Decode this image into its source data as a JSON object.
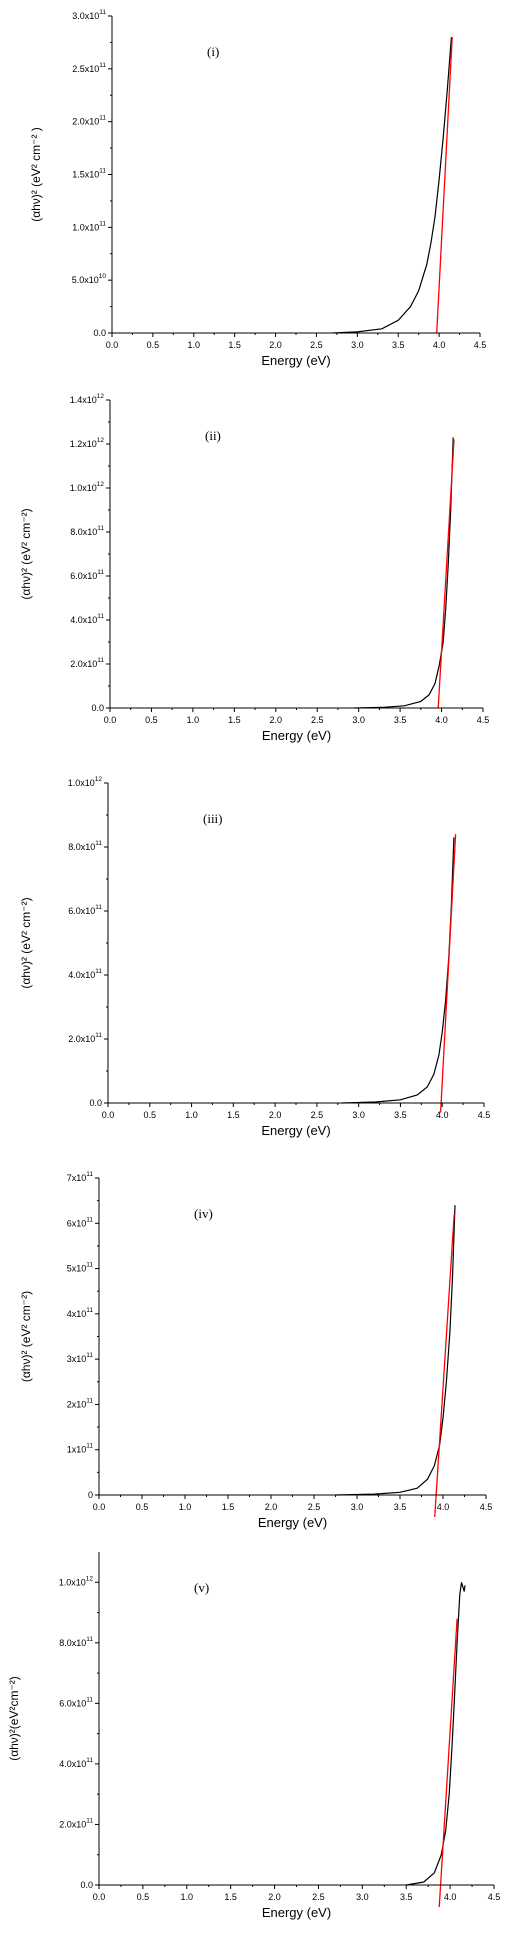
{
  "chart_data": [
    {
      "type": "line",
      "panel_label": "(i)",
      "xlabel": "Energy (eV)",
      "ylabel": "(αhν)² (eV² cm⁻² )",
      "xlim": [
        0,
        4.5
      ],
      "ylim": [
        0,
        300000000000.0
      ],
      "xticks": [
        "0.0",
        "0.5",
        "1.0",
        "1.5",
        "2.0",
        "2.5",
        "3.0",
        "3.5",
        "4.0",
        "4.5"
      ],
      "yticks": [
        {
          "v": 0,
          "m": "0.0",
          "e": ""
        },
        {
          "v": 50000000000.0,
          "m": "5.0x10",
          "e": "10"
        },
        {
          "v": 100000000000.0,
          "m": "1.0x10",
          "e": "11"
        },
        {
          "v": 150000000000.0,
          "m": "1.5x10",
          "e": "11"
        },
        {
          "v": 200000000000.0,
          "m": "2.0x10",
          "e": "11"
        },
        {
          "v": 250000000000.0,
          "m": "2.5x10",
          "e": "11"
        },
        {
          "v": 300000000000.0,
          "m": "3.0x10",
          "e": "11"
        }
      ],
      "series": [
        {
          "color": "#000000",
          "points": [
            [
              2.7,
              0
            ],
            [
              3.0,
              1000000000.0
            ],
            [
              3.3,
              4000000000.0
            ],
            [
              3.5,
              12000000000.0
            ],
            [
              3.65,
              25000000000.0
            ],
            [
              3.75,
              40000000000.0
            ],
            [
              3.85,
              65000000000.0
            ],
            [
              3.9,
              85000000000.0
            ],
            [
              3.95,
              110000000000.0
            ],
            [
              4.0,
              145000000000.0
            ],
            [
              4.05,
              185000000000.0
            ],
            [
              4.1,
              230000000000.0
            ],
            [
              4.15,
              280000000000.0
            ]
          ]
        },
        {
          "color": "#ff0000",
          "points": [
            [
              3.97,
              0
            ],
            [
              4.16,
              280000000000.0
            ]
          ]
        }
      ]
    },
    {
      "type": "line",
      "panel_label": "(ii)",
      "xlabel": "Energy (eV)",
      "ylabel": "(αhν)² (eV² cm⁻²)",
      "xlim": [
        0,
        4.5
      ],
      "ylim": [
        0,
        1400000000000.0
      ],
      "xticks": [
        "0.0",
        "0.5",
        "1.0",
        "1.5",
        "2.0",
        "2.5",
        "3.0",
        "3.5",
        "4.0",
        "4.5"
      ],
      "yticks": [
        {
          "v": 0,
          "m": "0.0",
          "e": ""
        },
        {
          "v": 200000000000.0,
          "m": "2.0x10",
          "e": "11"
        },
        {
          "v": 400000000000.0,
          "m": "4.0x10",
          "e": "11"
        },
        {
          "v": 600000000000.0,
          "m": "6.0x10",
          "e": "11"
        },
        {
          "v": 800000000000.0,
          "m": "8.0x10",
          "e": "11"
        },
        {
          "v": 1000000000000.0,
          "m": "1.0x10",
          "e": "12"
        },
        {
          "v": 1200000000000.0,
          "m": "1.2x10",
          "e": "12"
        },
        {
          "v": 1400000000000.0,
          "m": "1.4x10",
          "e": "12"
        }
      ],
      "series": [
        {
          "color": "#000000",
          "points": [
            [
              2.95,
              0
            ],
            [
              3.3,
              3000000000.0
            ],
            [
              3.55,
              10000000000.0
            ],
            [
              3.75,
              30000000000.0
            ],
            [
              3.85,
              60000000000.0
            ],
            [
              3.92,
              110000000000.0
            ],
            [
              3.97,
              190000000000.0
            ],
            [
              4.02,
              300000000000.0
            ],
            [
              4.05,
              450000000000.0
            ],
            [
              4.08,
              650000000000.0
            ],
            [
              4.11,
              900000000000.0
            ],
            [
              4.14,
              1230000000000.0
            ]
          ]
        },
        {
          "color": "#ff0000",
          "points": [
            [
              3.96,
              0
            ],
            [
              4.15,
              1220000000000.0
            ]
          ]
        }
      ]
    },
    {
      "type": "line",
      "panel_label": "(iii)",
      "xlabel": "Energy (eV)",
      "ylabel": "(αhν)² (eV² cm⁻²)",
      "xlim": [
        0,
        4.5
      ],
      "ylim": [
        0,
        1000000000000.0
      ],
      "xticks": [
        "0.0",
        "0.5",
        "1.0",
        "1.5",
        "2.0",
        "2.5",
        "3.0",
        "3.5",
        "4.0",
        "4.5"
      ],
      "yticks": [
        {
          "v": 0,
          "m": "0.0",
          "e": ""
        },
        {
          "v": 200000000000.0,
          "m": "2.0x10",
          "e": "11"
        },
        {
          "v": 400000000000.0,
          "m": "4.0x10",
          "e": "11"
        },
        {
          "v": 600000000000.0,
          "m": "6.0x10",
          "e": "11"
        },
        {
          "v": 800000000000.0,
          "m": "8.0x10",
          "e": "11"
        },
        {
          "v": 1000000000000.0,
          "m": "1.0x10",
          "e": "12"
        }
      ],
      "series": [
        {
          "color": "#000000",
          "points": [
            [
              2.8,
              0
            ],
            [
              3.2,
              3000000000.0
            ],
            [
              3.5,
              10000000000.0
            ],
            [
              3.7,
              25000000000.0
            ],
            [
              3.82,
              50000000000.0
            ],
            [
              3.9,
              90000000000.0
            ],
            [
              3.96,
              150000000000.0
            ],
            [
              4.0,
              220000000000.0
            ],
            [
              4.04,
              320000000000.0
            ],
            [
              4.08,
              460000000000.0
            ],
            [
              4.11,
              620000000000.0
            ],
            [
              4.14,
              830000000000.0
            ]
          ]
        },
        {
          "color": "#ff0000",
          "points": [
            [
              3.98,
              -30000000000.0
            ],
            [
              4.16,
              840000000000.0
            ]
          ]
        }
      ]
    },
    {
      "type": "line",
      "panel_label": "(iv)",
      "xlabel": "Energy (eV)",
      "ylabel": "(αhν)² (eV² cm⁻²)",
      "xlim": [
        0,
        4.5
      ],
      "ylim": [
        0,
        700000000000.0
      ],
      "xticks": [
        "0.0",
        "0.5",
        "1.0",
        "1.5",
        "2.0",
        "2.5",
        "3.0",
        "3.5",
        "4.0",
        "4.5"
      ],
      "yticks": [
        {
          "v": 0,
          "m": "0",
          "e": ""
        },
        {
          "v": 100000000000.0,
          "m": "1x10",
          "e": "11"
        },
        {
          "v": 200000000000.0,
          "m": "2x10",
          "e": "11"
        },
        {
          "v": 300000000000.0,
          "m": "3x10",
          "e": "11"
        },
        {
          "v": 400000000000.0,
          "m": "4x10",
          "e": "11"
        },
        {
          "v": 500000000000.0,
          "m": "5x10",
          "e": "11"
        },
        {
          "v": 600000000000.0,
          "m": "6x10",
          "e": "11"
        },
        {
          "v": 700000000000.0,
          "m": "7x10",
          "e": "11"
        }
      ],
      "series": [
        {
          "color": "#000000",
          "points": [
            [
              2.75,
              0
            ],
            [
              3.2,
              2000000000.0
            ],
            [
              3.5,
              6000000000.0
            ],
            [
              3.7,
              15000000000.0
            ],
            [
              3.82,
              35000000000.0
            ],
            [
              3.9,
              65000000000.0
            ],
            [
              3.96,
              110000000000.0
            ],
            [
              4.0,
              170000000000.0
            ],
            [
              4.04,
              250000000000.0
            ],
            [
              4.08,
              360000000000.0
            ],
            [
              4.11,
              480000000000.0
            ],
            [
              4.14,
              640000000000.0
            ]
          ]
        },
        {
          "color": "#ff0000",
          "points": [
            [
              3.9,
              -60000000000.0
            ],
            [
              4.13,
              620000000000.0
            ]
          ]
        }
      ]
    },
    {
      "type": "line",
      "panel_label": "(v)",
      "xlabel": "Energy (eV)",
      "ylabel": "(αhν)²(eV²cm⁻²)",
      "xlim": [
        0,
        4.5
      ],
      "ylim": [
        0,
        1100000000000.0
      ],
      "xticks": [
        "0.0",
        "0.5",
        "1.0",
        "1.5",
        "2.0",
        "2.5",
        "3.0",
        "3.5",
        "4.0",
        "4.5"
      ],
      "yticks": [
        {
          "v": 0,
          "m": "0.0",
          "e": ""
        },
        {
          "v": 200000000000.0,
          "m": "2.0x10",
          "e": "11"
        },
        {
          "v": 400000000000.0,
          "m": "4.0x10",
          "e": "11"
        },
        {
          "v": 600000000000.0,
          "m": "6.0x10",
          "e": "11"
        },
        {
          "v": 800000000000.0,
          "m": "8.0x10",
          "e": "11"
        },
        {
          "v": 1000000000000.0,
          "m": "1.0x10",
          "e": "12"
        }
      ],
      "series": [
        {
          "color": "#000000",
          "points": [
            [
              3.5,
              0
            ],
            [
              3.7,
              10000000000.0
            ],
            [
              3.82,
              40000000000.0
            ],
            [
              3.9,
              100000000000.0
            ],
            [
              3.95,
              180000000000.0
            ],
            [
              3.99,
              300000000000.0
            ],
            [
              4.02,
              450000000000.0
            ],
            [
              4.05,
              620000000000.0
            ],
            [
              4.08,
              800000000000.0
            ],
            [
              4.11,
              960000000000.0
            ],
            [
              4.13,
              1000000000000.0
            ],
            [
              4.16,
              970000000000.0
            ],
            [
              4.17,
              990000000000.0
            ]
          ]
        },
        {
          "color": "#ff0000",
          "points": [
            [
              3.87,
              -100000000000.0
            ],
            [
              4.08,
              880000000000.0
            ]
          ]
        }
      ]
    }
  ]
}
